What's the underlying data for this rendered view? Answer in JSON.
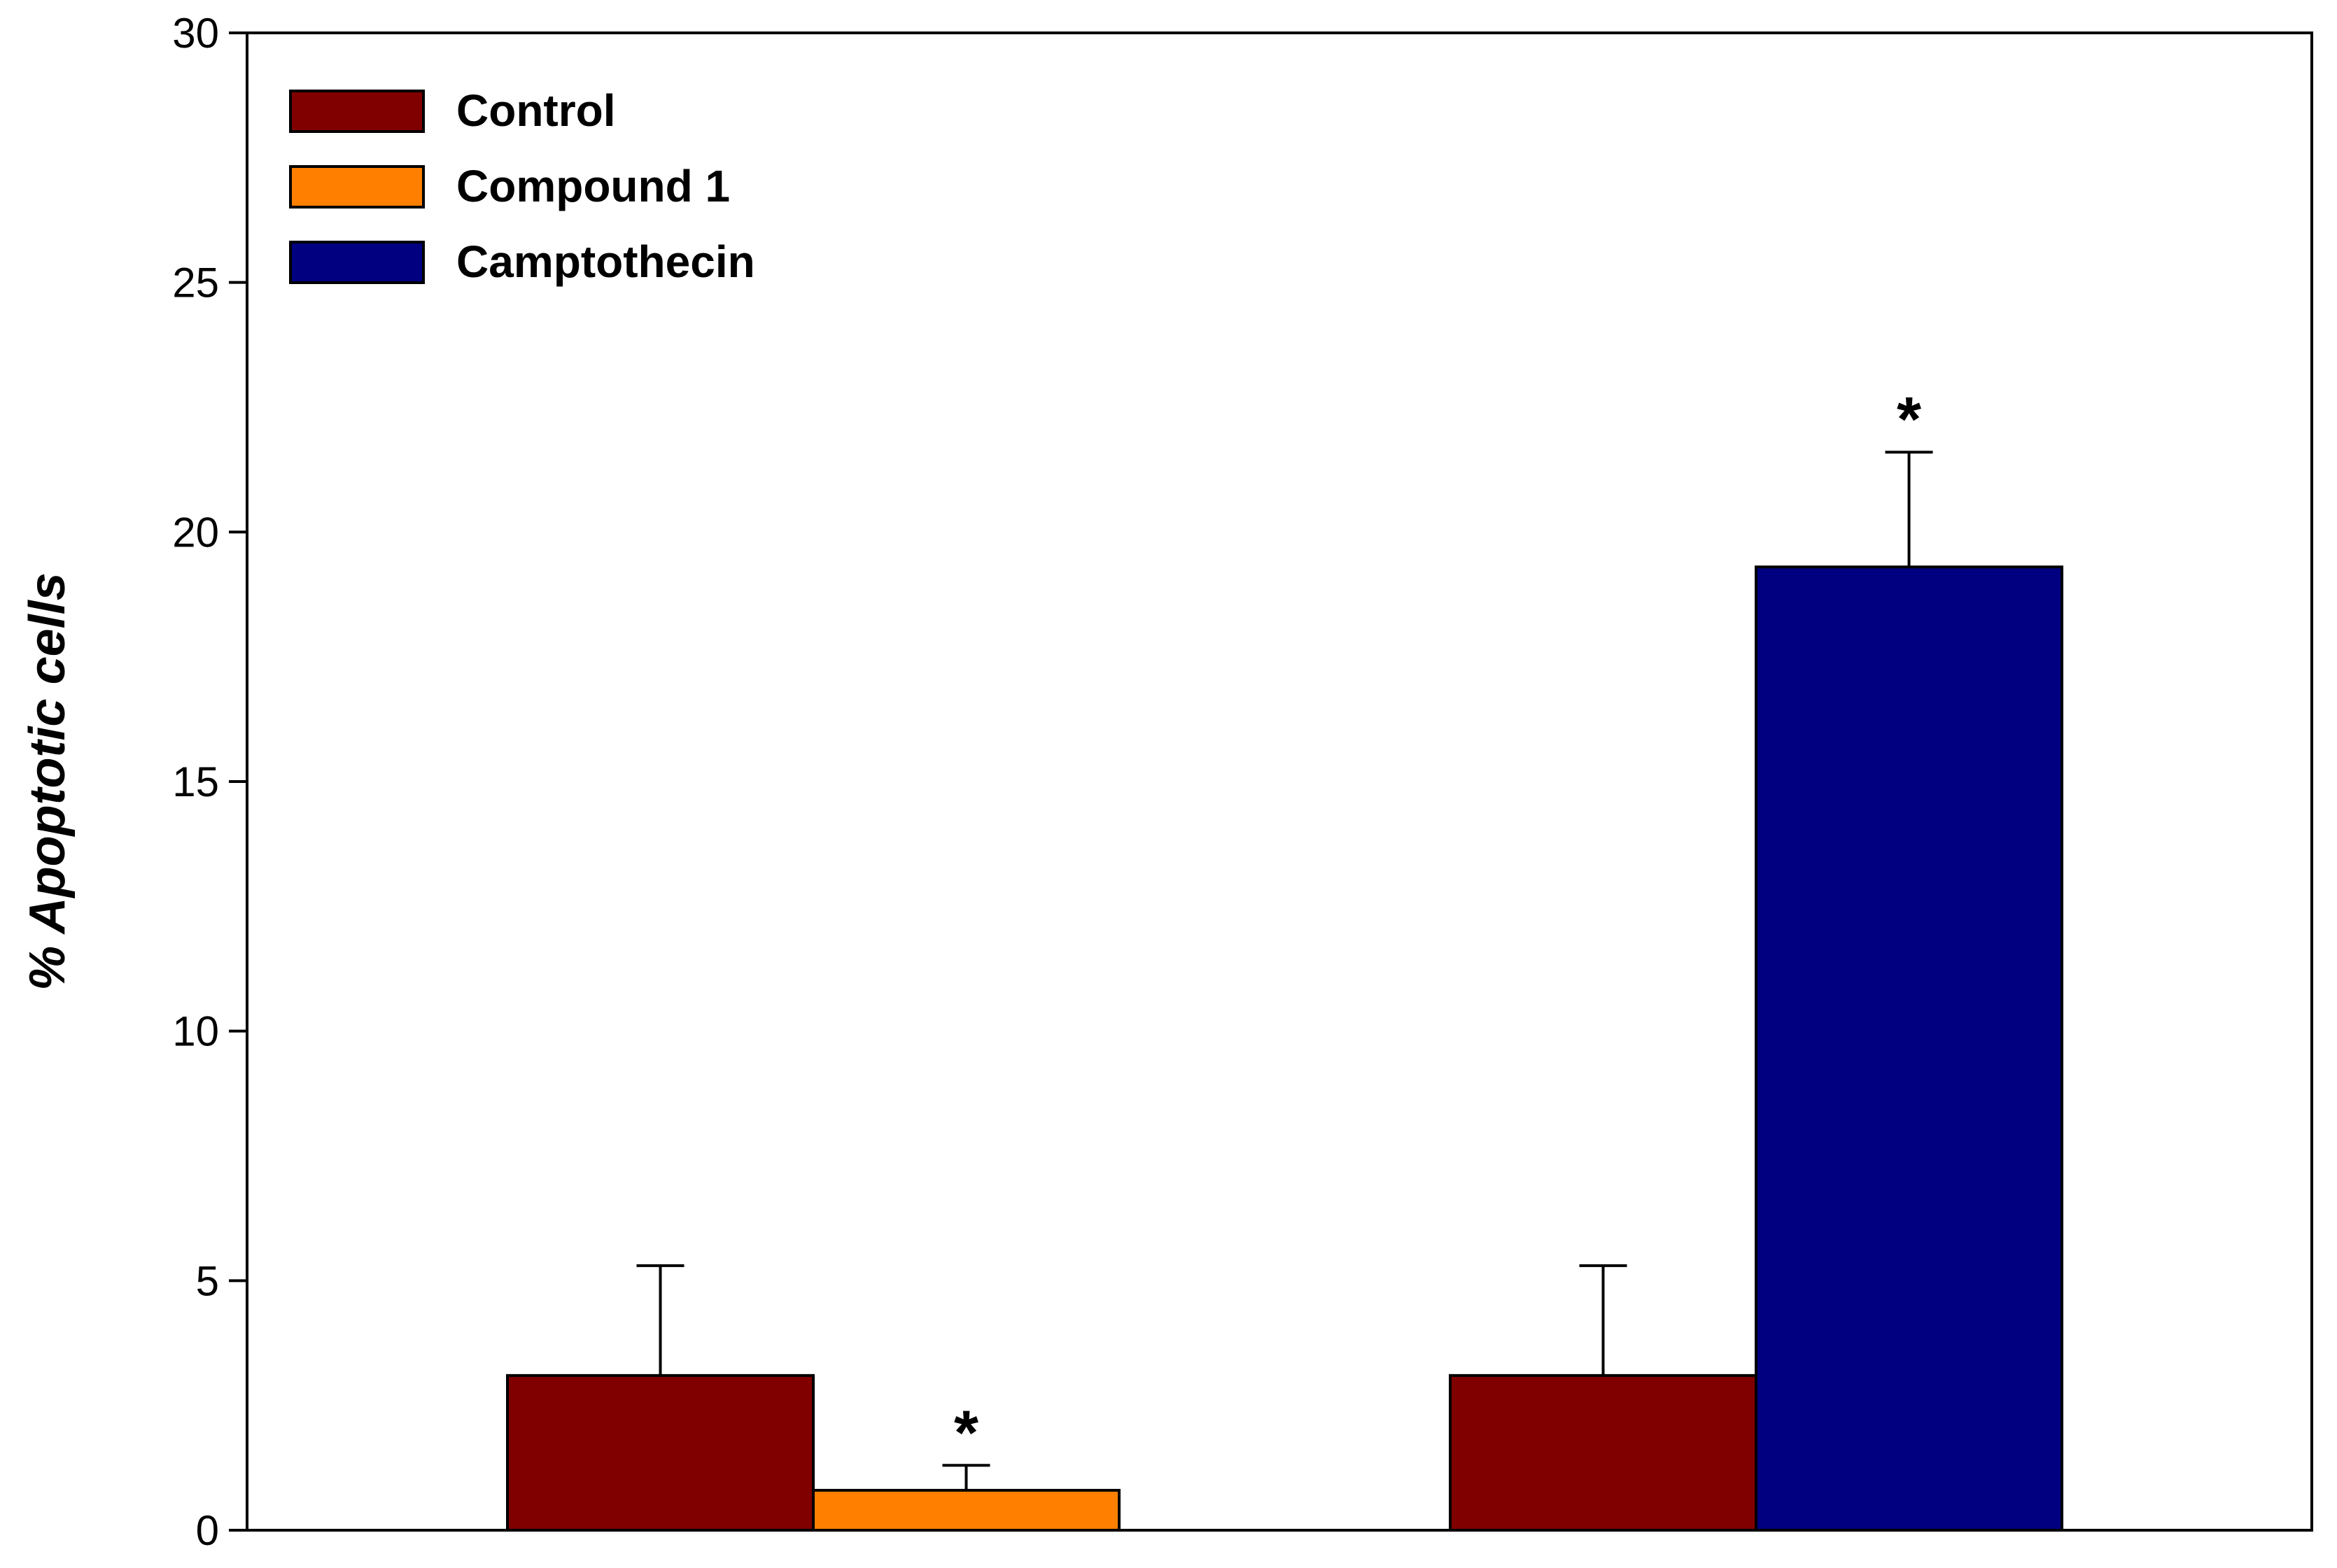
{
  "chart_data": {
    "type": "bar",
    "title": "",
    "xlabel": "",
    "ylabel": "% Apoptotic cells",
    "ylim": [
      0,
      30
    ],
    "yticks": [
      0,
      5,
      10,
      15,
      20,
      25,
      30
    ],
    "grid": false,
    "legend_position": "top-left",
    "groups": [
      {
        "bars": [
          {
            "series": "Control",
            "value": 3.1,
            "error": 2.2,
            "annotation": ""
          },
          {
            "series": "Compound 1",
            "value": 0.8,
            "error": 0.5,
            "annotation": "*"
          }
        ]
      },
      {
        "bars": [
          {
            "series": "Control",
            "value": 3.1,
            "error": 2.2,
            "annotation": ""
          },
          {
            "series": "Camptothecin",
            "value": 19.3,
            "error": 2.3,
            "annotation": "*"
          }
        ]
      }
    ],
    "series": [
      {
        "name": "Control",
        "color": "#800000"
      },
      {
        "name": "Compound 1",
        "color": "#ff8000"
      },
      {
        "name": "Camptothecin",
        "color": "#000080"
      }
    ]
  }
}
